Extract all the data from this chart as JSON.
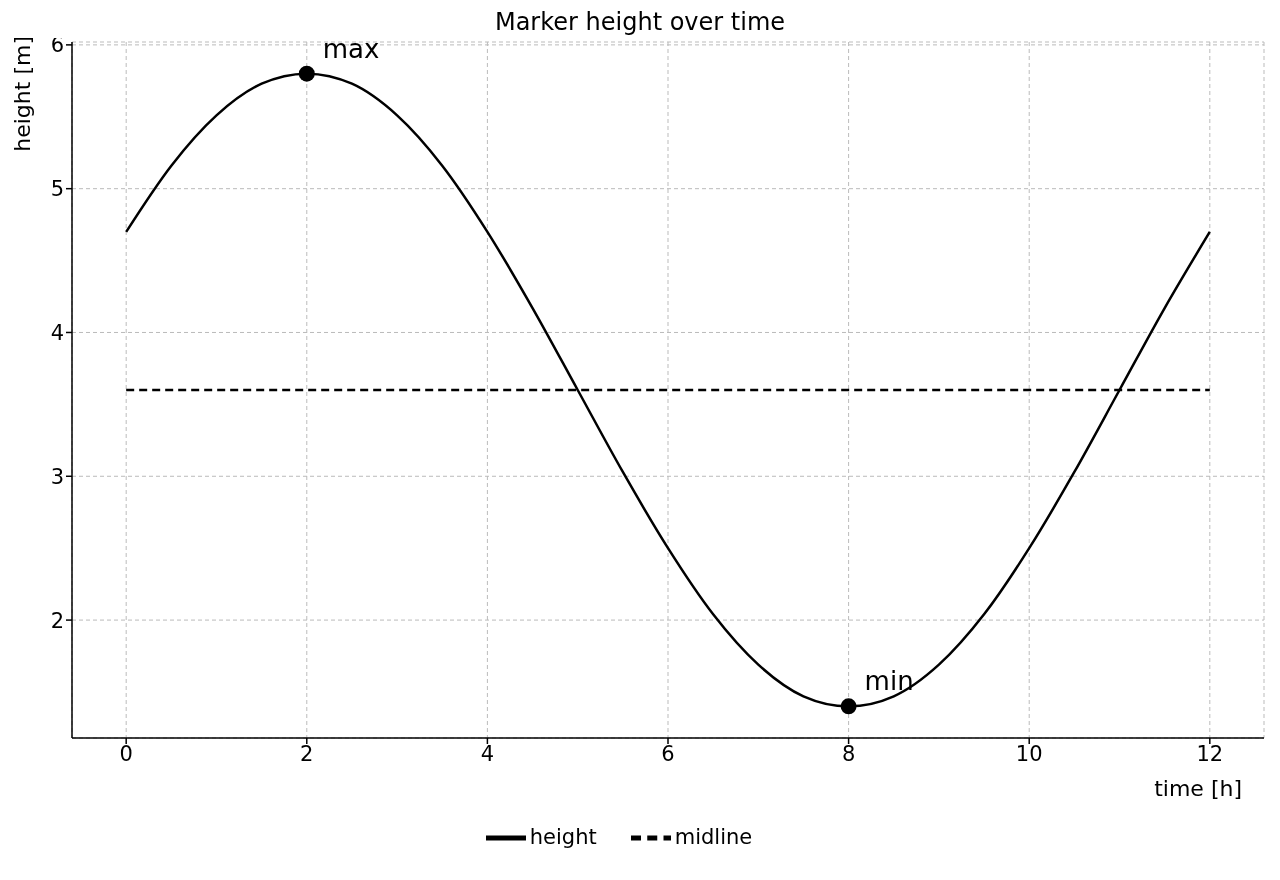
{
  "chart_data": {
    "type": "line",
    "title": "Marker height over time",
    "xlabel": "time [h]",
    "ylabel": "height [m]",
    "series": [
      {
        "name": "height",
        "color": "#000000",
        "line_style": "solid",
        "x": [
          0,
          0.5,
          1,
          1.5,
          2,
          2.5,
          3,
          3.5,
          4,
          4.5,
          5,
          5.5,
          6,
          6.5,
          7,
          7.5,
          8,
          8.5,
          9,
          9.5,
          10,
          10.5,
          11,
          11.5,
          12
        ],
        "values": [
          4.7,
          5.16,
          5.51,
          5.73,
          5.8,
          5.73,
          5.51,
          5.16,
          4.7,
          4.17,
          3.6,
          3.03,
          2.5,
          2.04,
          1.69,
          1.47,
          1.4,
          1.47,
          1.69,
          2.04,
          2.5,
          3.03,
          3.6,
          4.17,
          4.7
        ]
      },
      {
        "name": "midline",
        "color": "#000000",
        "line_style": "dashed",
        "x": [
          0,
          12
        ],
        "values": [
          3.6,
          3.6
        ]
      },
      {
        "type": "scatter",
        "color": "#000000",
        "marker": "circle",
        "x": [
          2,
          8
        ],
        "values": [
          5.8,
          1.4
        ]
      }
    ],
    "annotations": [
      {
        "text": "max",
        "x": 2,
        "y": 5.8
      },
      {
        "text": "min",
        "x": 8,
        "y": 1.4
      }
    ],
    "xlim": [
      -0.6,
      12.6
    ],
    "xticks": [
      0,
      2,
      4,
      6,
      8,
      10,
      12
    ],
    "ylim": [
      1.18,
      6.02
    ],
    "yticks": [
      2,
      3,
      4,
      5,
      6
    ],
    "grid": true,
    "legend": "bottom",
    "marker": "none"
  }
}
